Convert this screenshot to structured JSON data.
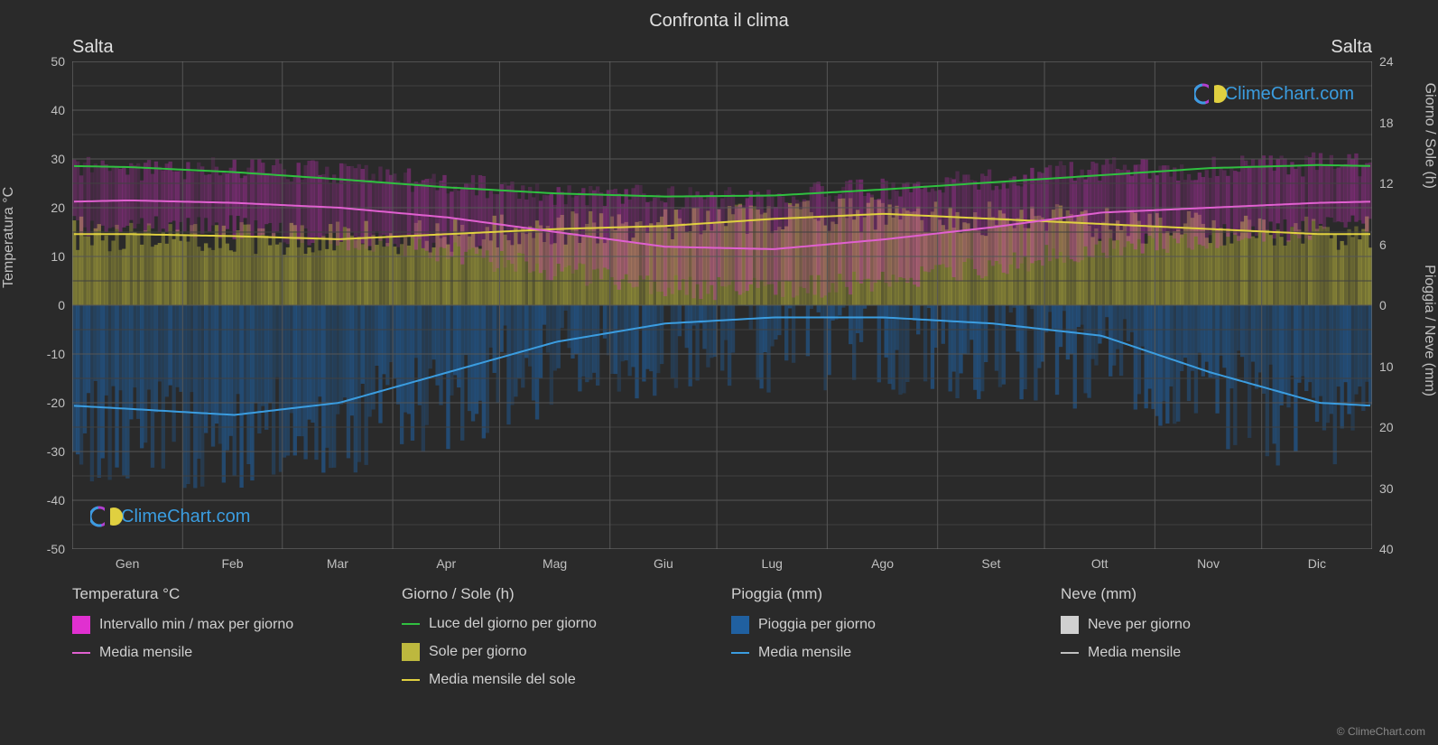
{
  "title": "Confronta il clima",
  "city_left": "Salta",
  "city_right": "Salta",
  "watermark_text": "ClimeChart.com",
  "copyright": "© ClimeChart.com",
  "axes": {
    "left_label": "Temperatura °C",
    "right_top_label": "Giorno / Sole (h)",
    "right_bottom_label": "Pioggia / Neve (mm)",
    "left_min": -50,
    "left_max": 50,
    "left_tick_step": 10,
    "right_top_min": 0,
    "right_top_max": 24,
    "right_top_tick_step": 6,
    "right_bottom_min": 0,
    "right_bottom_max": 40,
    "right_bottom_tick_step": 10,
    "months": [
      "Gen",
      "Feb",
      "Mar",
      "Apr",
      "Mag",
      "Giu",
      "Lug",
      "Ago",
      "Set",
      "Ott",
      "Nov",
      "Dic"
    ]
  },
  "colors": {
    "background": "#2a2a2a",
    "grid": "#555555",
    "grid_minor": "#404040",
    "border": "#777777",
    "text": "#d0d0d0",
    "temp_range": "#e030d0",
    "temp_mean": "#e060d0",
    "daylight": "#30c040",
    "sun_fill": "#bdb83e",
    "sun_mean": "#e0d040",
    "rain_fill": "#2060a0",
    "rain_mean": "#3b9de0",
    "snow_fill": "#d0d0d0",
    "snow_mean": "#c0c0c0",
    "watermark": "#3b9de0"
  },
  "series": {
    "daylight_h": [
      13.6,
      13.1,
      12.4,
      11.6,
      11.0,
      10.7,
      10.8,
      11.4,
      12.1,
      12.8,
      13.5,
      13.8
    ],
    "sun_h": [
      7.0,
      6.8,
      6.5,
      7.0,
      7.5,
      7.8,
      8.5,
      9.0,
      8.5,
      8.0,
      7.5,
      7.0
    ],
    "temp_mean_c": [
      21.5,
      21.0,
      20.0,
      18.0,
      15.0,
      12.0,
      11.5,
      13.5,
      16.0,
      19.0,
      20.0,
      21.0
    ],
    "temp_lo_c": [
      16,
      16,
      14,
      11,
      7,
      4,
      3,
      5,
      8,
      12,
      14,
      16
    ],
    "temp_hi_c": [
      28,
      28,
      27,
      25,
      23,
      22,
      22,
      24,
      26,
      28,
      28,
      29
    ],
    "rain_mm": [
      17,
      18,
      16,
      11,
      6,
      3,
      2,
      2,
      3,
      5,
      11,
      16
    ]
  },
  "legend": {
    "c1_header": "Temperatura °C",
    "c1_i1": "Intervallo min / max per giorno",
    "c1_i2": "Media mensile",
    "c2_header": "Giorno / Sole (h)",
    "c2_i1": "Luce del giorno per giorno",
    "c2_i2": "Sole per giorno",
    "c2_i3": "Media mensile del sole",
    "c3_header": "Pioggia (mm)",
    "c3_i1": "Pioggia per giorno",
    "c3_i2": "Media mensile",
    "c4_header": "Neve (mm)",
    "c4_i1": "Neve per giorno",
    "c4_i2": "Media mensile"
  }
}
